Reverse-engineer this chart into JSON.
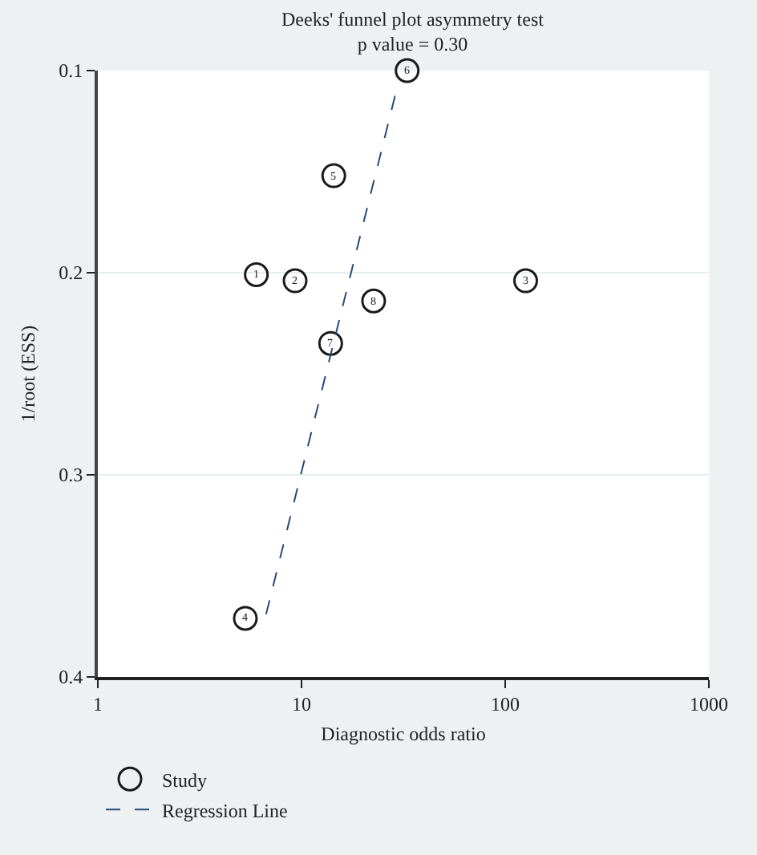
{
  "chart_data": {
    "type": "scatter",
    "title": "Deeks' funnel plot asymmetry test",
    "subtitle": "p value = 0.30",
    "xlabel": "Diagnostic odds ratio",
    "ylabel": "1/root (ESS)",
    "log": "x",
    "xlim": [
      1,
      1000
    ],
    "xticks": [
      1,
      10,
      100,
      1000
    ],
    "ylim": [
      0.4,
      0.1
    ],
    "yticks": [
      0.1,
      0.2,
      0.3,
      0.4
    ],
    "grid": "y",
    "legend": "bottom left",
    "annotations": [
      {
        "text": "1",
        "x": 6.0,
        "y": 0.201
      },
      {
        "text": "2",
        "x": 9.3,
        "y": 0.204
      },
      {
        "text": "3",
        "x": 126,
        "y": 0.204
      },
      {
        "text": "4",
        "x": 5.3,
        "y": 0.371
      },
      {
        "text": "5",
        "x": 14.4,
        "y": 0.152
      },
      {
        "text": "6",
        "x": 33,
        "y": 0.1
      },
      {
        "text": "7",
        "x": 13.9,
        "y": 0.235
      },
      {
        "text": "8",
        "x": 22.6,
        "y": 0.214
      }
    ],
    "series": [
      {
        "name": "Study",
        "color": "#1a1a1a",
        "x": [
          6.0,
          9.3,
          126,
          5.3,
          14.4,
          33,
          13.9,
          22.6
        ],
        "values": [
          0.201,
          0.204,
          0.204,
          0.371,
          0.152,
          0.1,
          0.235,
          0.214
        ],
        "marker": "circle"
      },
      {
        "name": "Regression Line",
        "type": "line",
        "line_style": "dashed",
        "color": "#2b4a7a",
        "x": [
          6.7,
          29.7
        ],
        "values": [
          0.369,
          0.107
        ]
      }
    ]
  }
}
